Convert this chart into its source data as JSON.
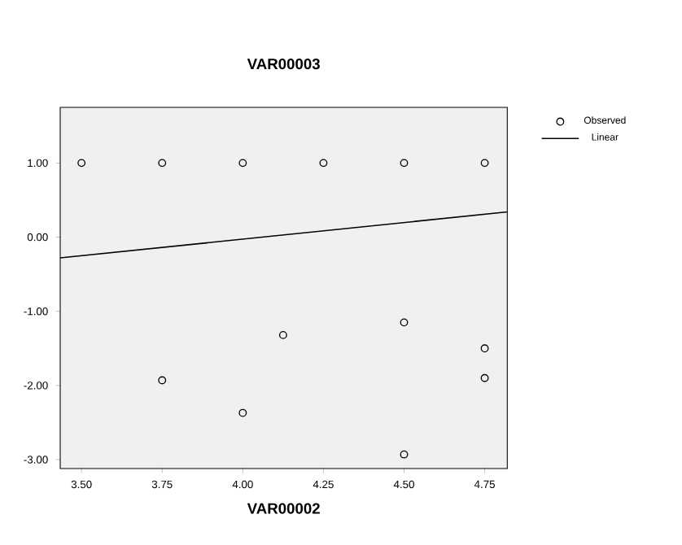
{
  "chart_data": {
    "type": "scatter",
    "title": "VAR00003",
    "xlabel": "VAR00002",
    "xlim": [
      3.434,
      4.82
    ],
    "ylim": [
      -3.12,
      1.75
    ],
    "xticks": [
      {
        "value": 3.5,
        "label": "3.50"
      },
      {
        "value": 3.75,
        "label": "3.75"
      },
      {
        "value": 4,
        "label": "4.00"
      },
      {
        "value": 4.25,
        "label": "4.25"
      },
      {
        "value": 4.5,
        "label": "4.50"
      },
      {
        "value": 4.75,
        "label": "4.75"
      }
    ],
    "yticks": [
      {
        "value": -3,
        "label": "-3.00"
      },
      {
        "value": -2,
        "label": "-2.00"
      },
      {
        "value": -1,
        "label": "-1.00"
      },
      {
        "value": 0,
        "label": "0.00"
      },
      {
        "value": 1,
        "label": "1.00"
      }
    ],
    "series": [
      {
        "name": "Observed",
        "type": "scatter",
        "color": "#000000",
        "marker": "circle",
        "x": [
          3.5,
          3.75,
          4.0,
          4.25,
          4.5,
          4.75,
          3.75,
          4.0,
          4.125,
          4.5,
          4.5,
          4.75,
          4.75
        ],
        "values": [
          1,
          1,
          1,
          1,
          1,
          1,
          -1.93,
          -2.37,
          -1.32,
          -1.15,
          -2.93,
          -1.5,
          -1.9
        ]
      },
      {
        "name": "Linear",
        "type": "line",
        "color": "#000000",
        "marker": "none",
        "line_style": "solid",
        "x": [
          3.434,
          4.82
        ],
        "values": [
          -0.28,
          0.34
        ]
      }
    ],
    "legend": "top right",
    "grid": false
  }
}
